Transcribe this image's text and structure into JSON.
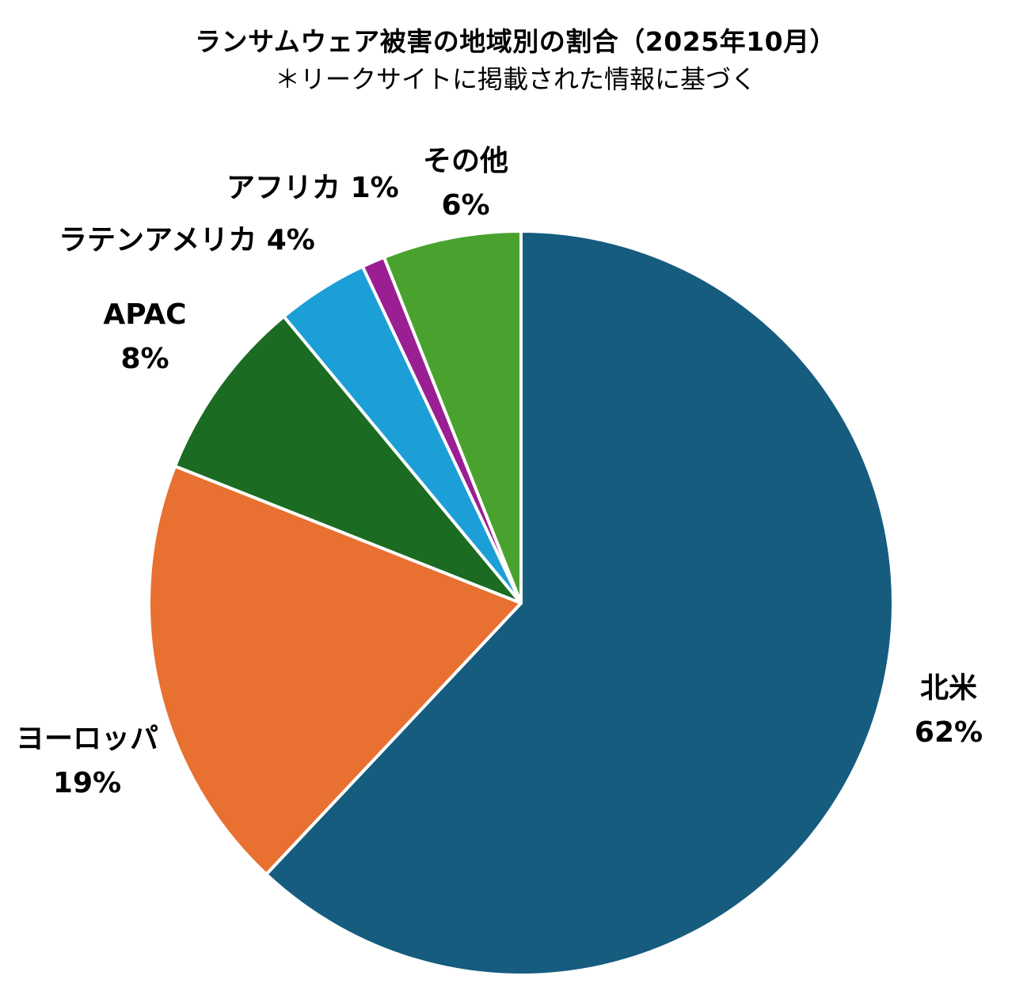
{
  "chart_data": {
    "type": "pie",
    "title": "ランサムウェア被害の地域別の割合（2025年10月）",
    "subtitle": "＊リークサイトに掲載された情報に基づく",
    "start_angle_deg": 0,
    "direction": "clockwise",
    "slice_border_color": "#ffffff",
    "slices": [
      {
        "name": "北米",
        "value": 62,
        "value_label": "62%",
        "color": "#155c7f"
      },
      {
        "name": "ヨーロッパ",
        "value": 19,
        "value_label": "19%",
        "color": "#e87030"
      },
      {
        "name": "APAC",
        "value": 8,
        "value_label": "8%",
        "color": "#1b6b22"
      },
      {
        "name": "ラテンアメリカ",
        "value": 4,
        "value_label": "4%",
        "color": "#1c9fd6"
      },
      {
        "name": "アフリカ",
        "value": 1,
        "value_label": "1%",
        "color": "#9a1f93"
      },
      {
        "name": "その他",
        "value": 6,
        "value_label": "6%",
        "color": "#4aa22e"
      }
    ]
  }
}
